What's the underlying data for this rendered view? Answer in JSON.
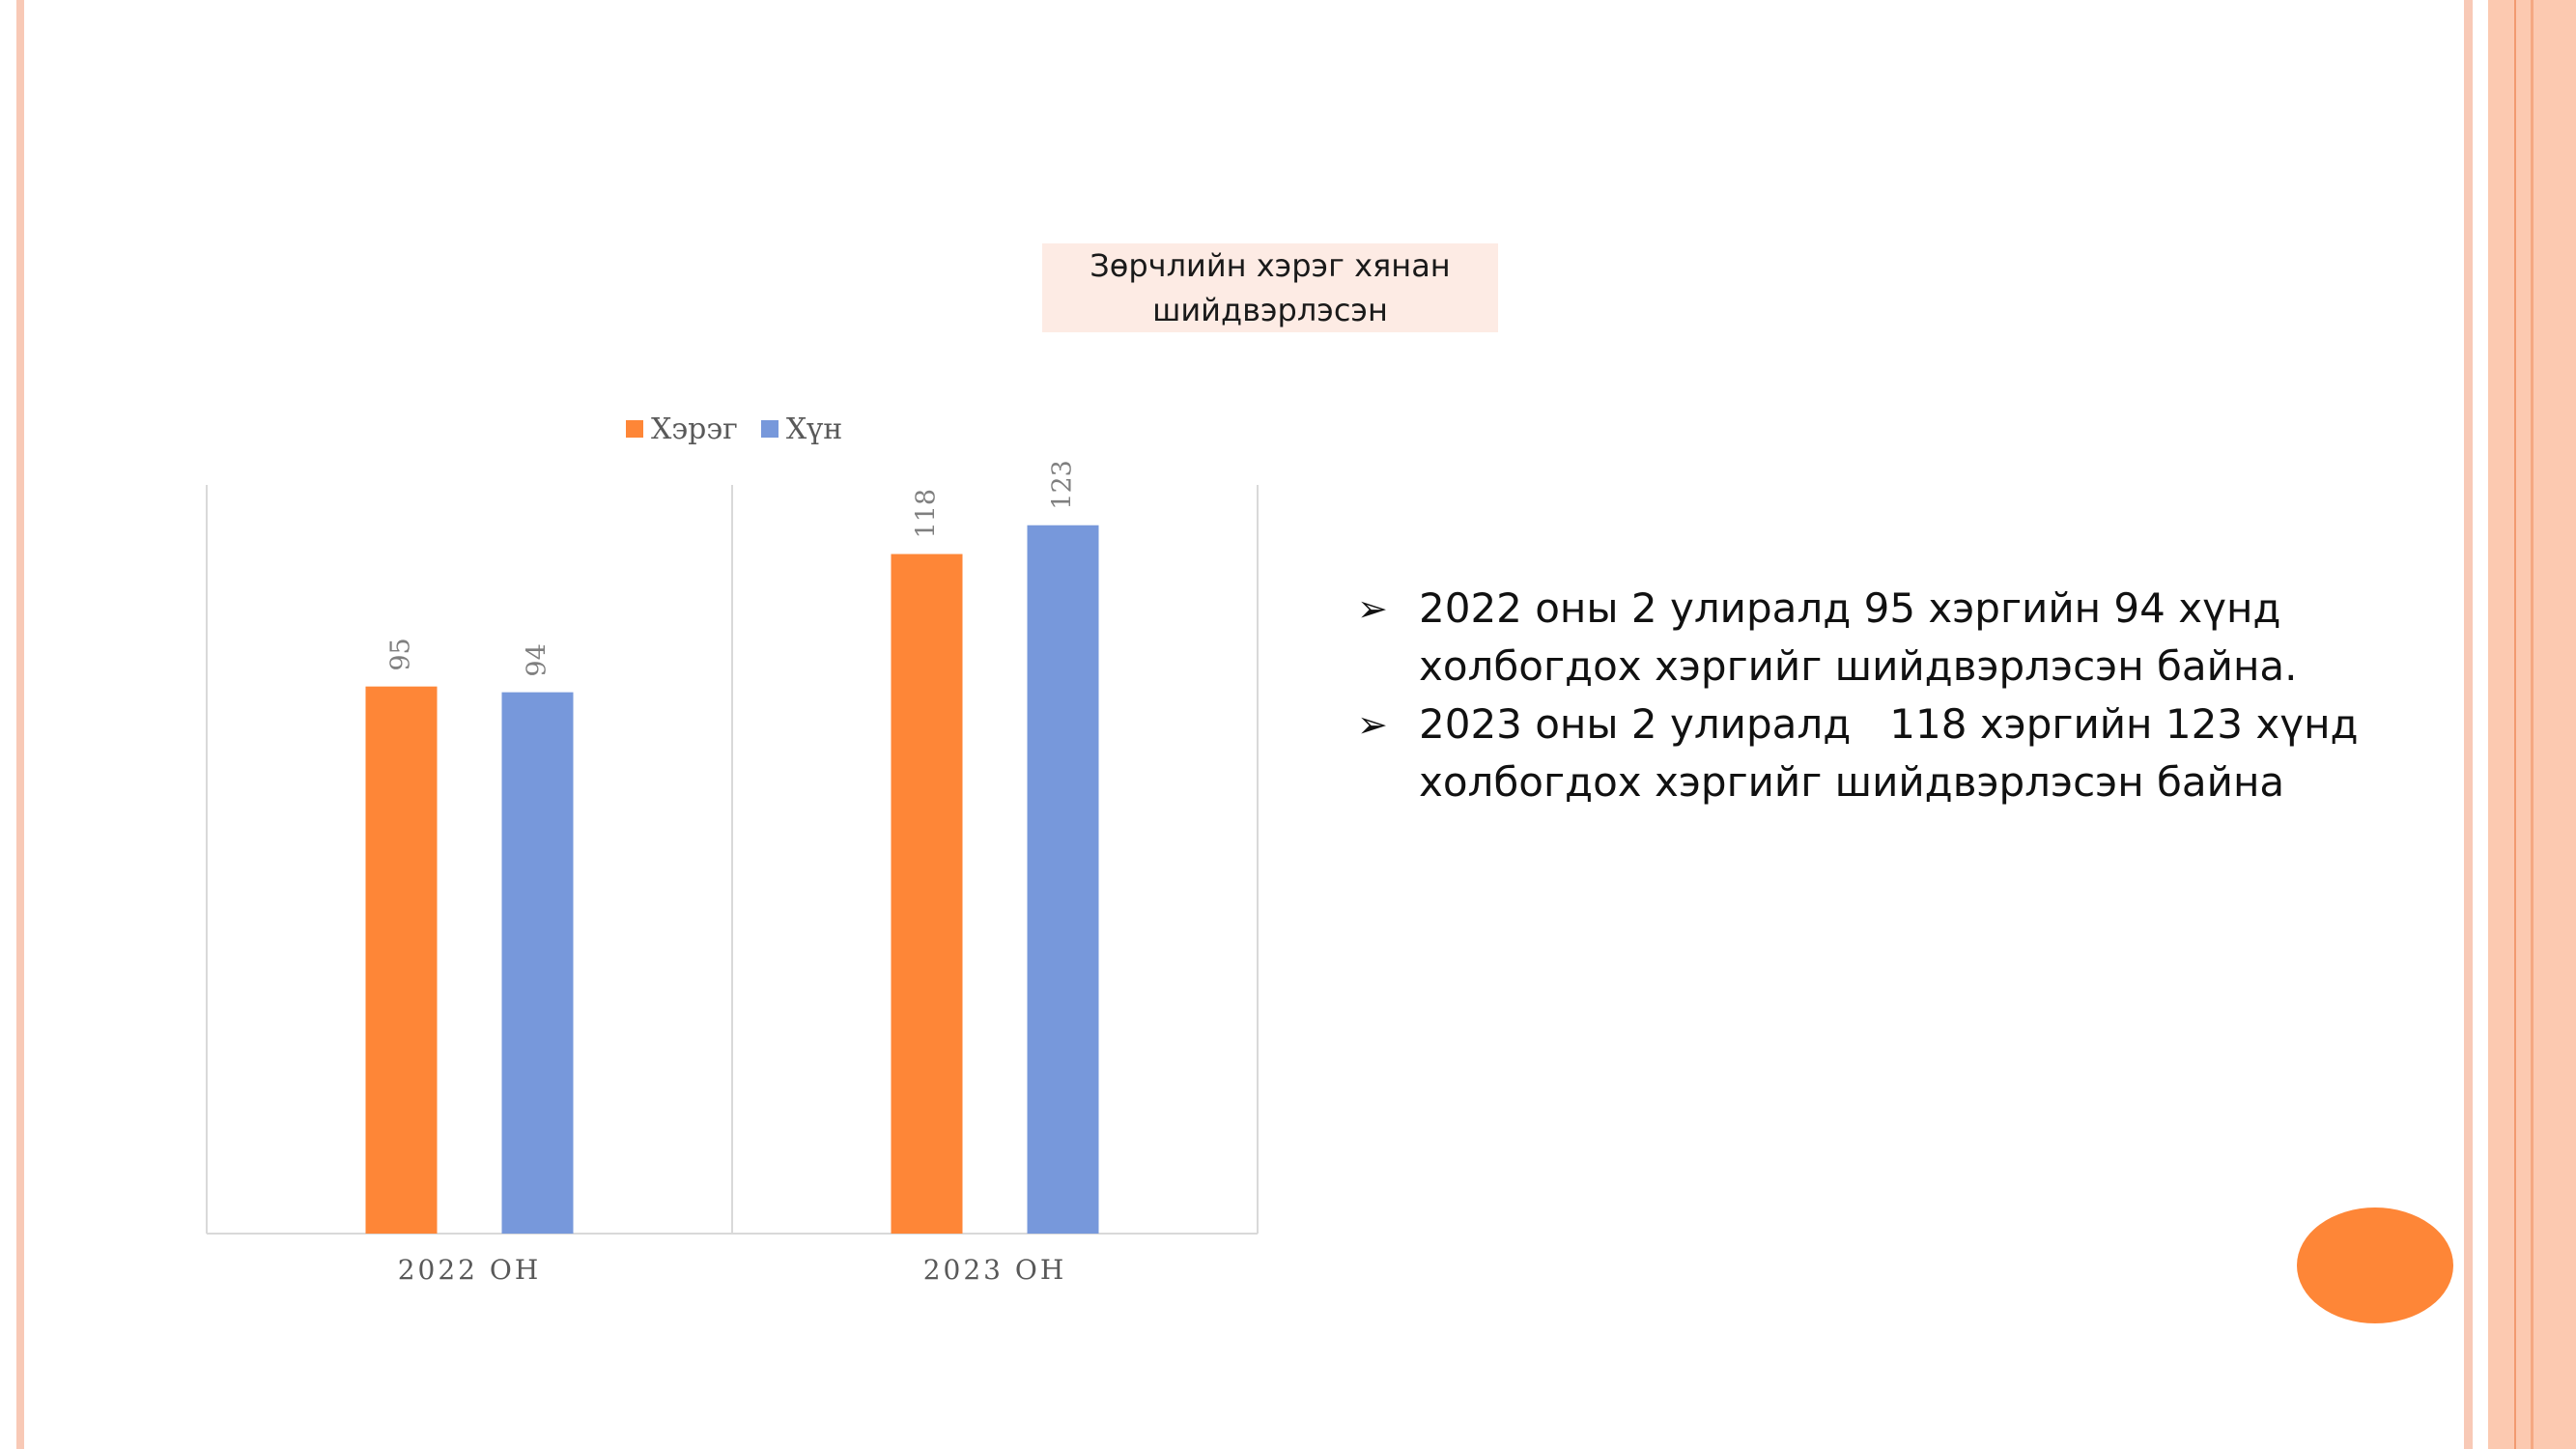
{
  "slide": {
    "bullets": [
      "2022 оны 2 улиралд 95 хэргийн 94 хүнд холбогдох хэргийг шийдвэрлэсэн байна.",
      "2023 оны 2 улиралд   118 хэргийн 123 хүнд холбогдох хэргийг шийдвэрлэсэн байна"
    ],
    "bullet_icon": "arrow-bullet-icon",
    "accent_color": "#fe8637"
  },
  "chart_data": {
    "type": "bar",
    "title": "Зөрчлийн хэрэг хянан шийдвэрлэсэн",
    "categories": [
      "2022 ОН",
      "2023 ОН"
    ],
    "series": [
      {
        "name": "Хэрэг",
        "color": "#fe8637",
        "values": [
          95,
          118
        ]
      },
      {
        "name": "Хүн",
        "color": "#7798db",
        "values": [
          94,
          123
        ]
      }
    ],
    "ylim": [
      0,
      130
    ],
    "data_labels": true,
    "legend": "top",
    "grid": false
  }
}
